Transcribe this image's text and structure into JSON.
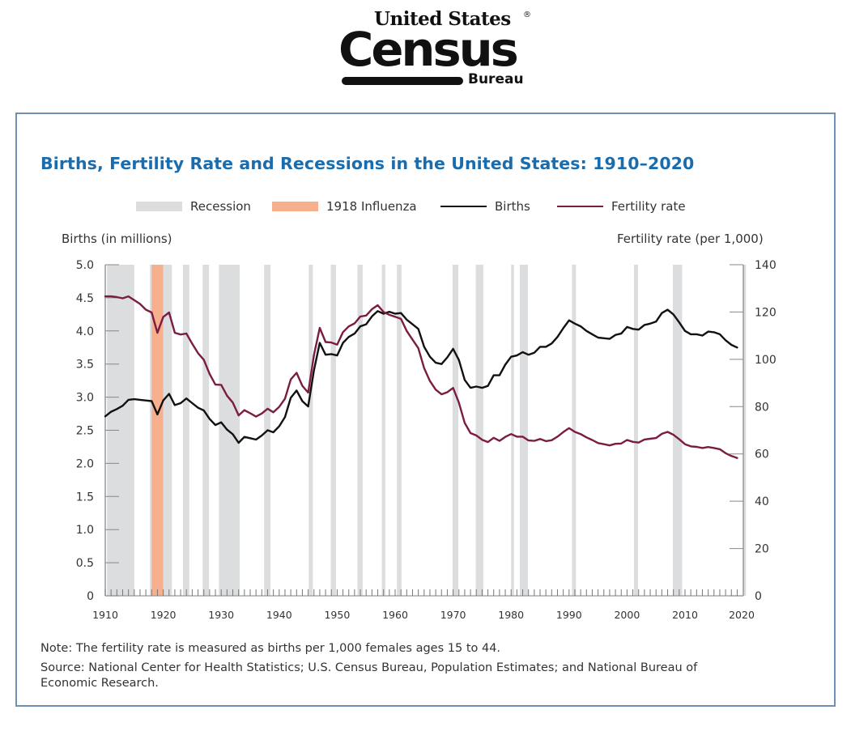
{
  "logo": {
    "line1": "United States",
    "registered": "®",
    "main": "Census",
    "sub": "Bureau"
  },
  "chart_data": {
    "type": "line",
    "title": "Births, Fertility Rate and Recessions in the United States: 1910–2020",
    "legend_placement": "top-center",
    "legend": [
      {
        "label": "Recession",
        "kind": "band",
        "color": "#dcdddf"
      },
      {
        "label": "1918 Influenza",
        "kind": "band",
        "color": "#f6b08e"
      },
      {
        "label": "Births",
        "kind": "line",
        "color": "#111111"
      },
      {
        "label": "Fertility rate",
        "kind": "line",
        "color": "#7b1c43"
      }
    ],
    "ylabel_left": "Births (in millions)",
    "ylabel_right": "Fertility rate (per 1,000)",
    "xlim": [
      1910,
      2020
    ],
    "ylim_left": [
      0,
      5
    ],
    "ylim_right": [
      0,
      140
    ],
    "x_ticks": [
      1910,
      1920,
      1930,
      1940,
      1950,
      1960,
      1970,
      1980,
      1990,
      2000,
      2010,
      2020
    ],
    "y_ticks_left": [
      "0",
      "0.5",
      "1.0",
      "1.5",
      "2.0",
      "2.5",
      "3.0",
      "3.5",
      "4.0",
      "4.5",
      "5.0"
    ],
    "y_ticks_right": [
      "0",
      "20",
      "40",
      "60",
      "80",
      "100",
      "120",
      "140"
    ],
    "grid": false,
    "recessions": [
      [
        1910.3,
        1915.0
      ],
      [
        1917.7,
        1918.0
      ],
      [
        1920.0,
        1921.5
      ],
      [
        1923.4,
        1924.5
      ],
      [
        1926.8,
        1927.9
      ],
      [
        1929.6,
        1933.2
      ],
      [
        1937.4,
        1938.5
      ],
      [
        1945.1,
        1945.8
      ],
      [
        1948.9,
        1949.8
      ],
      [
        1953.5,
        1954.4
      ],
      [
        1957.7,
        1958.3
      ],
      [
        1960.3,
        1961.1
      ],
      [
        1969.9,
        1970.9
      ],
      [
        1973.9,
        1975.2
      ],
      [
        1980.0,
        1980.5
      ],
      [
        1981.5,
        1982.9
      ],
      [
        1990.5,
        1991.2
      ],
      [
        2001.2,
        2001.9
      ],
      [
        2007.9,
        2009.5
      ],
      [
        2020.1,
        2020.4
      ]
    ],
    "influenza": [
      1918.0,
      1920.0
    ],
    "series": [
      {
        "name": "Births",
        "axis": "left",
        "color": "#111111",
        "x": [
          1910,
          1911,
          1912,
          1913,
          1914,
          1915,
          1916,
          1917,
          1918,
          1919,
          1920,
          1921,
          1922,
          1923,
          1924,
          1925,
          1926,
          1927,
          1928,
          1929,
          1930,
          1931,
          1932,
          1933,
          1934,
          1935,
          1936,
          1937,
          1938,
          1939,
          1940,
          1941,
          1942,
          1943,
          1944,
          1945,
          1946,
          1947,
          1948,
          1949,
          1950,
          1951,
          1952,
          1953,
          1954,
          1955,
          1956,
          1957,
          1958,
          1959,
          1960,
          1961,
          1962,
          1963,
          1964,
          1965,
          1966,
          1967,
          1968,
          1969,
          1970,
          1971,
          1972,
          1973,
          1974,
          1975,
          1976,
          1977,
          1978,
          1979,
          1980,
          1981,
          1982,
          1983,
          1984,
          1985,
          1986,
          1987,
          1988,
          1989,
          1990,
          1991,
          1992,
          1993,
          1994,
          1995,
          1996,
          1997,
          1998,
          1999,
          2000,
          2001,
          2002,
          2003,
          2004,
          2005,
          2006,
          2007,
          2008,
          2009,
          2010,
          2011,
          2012,
          2013,
          2014,
          2015,
          2016,
          2017,
          2018,
          2019
        ],
        "values": [
          2.71,
          2.78,
          2.82,
          2.87,
          2.96,
          2.97,
          2.96,
          2.95,
          2.94,
          2.74,
          2.95,
          3.05,
          2.88,
          2.91,
          2.98,
          2.91,
          2.84,
          2.8,
          2.67,
          2.58,
          2.62,
          2.51,
          2.44,
          2.31,
          2.4,
          2.38,
          2.36,
          2.42,
          2.5,
          2.47,
          2.56,
          2.7,
          2.99,
          3.1,
          2.94,
          2.86,
          3.41,
          3.82,
          3.64,
          3.65,
          3.63,
          3.82,
          3.91,
          3.96,
          4.07,
          4.1,
          4.22,
          4.3,
          4.26,
          4.29,
          4.26,
          4.27,
          4.17,
          4.1,
          4.03,
          3.76,
          3.61,
          3.52,
          3.5,
          3.6,
          3.73,
          3.56,
          3.26,
          3.14,
          3.16,
          3.14,
          3.17,
          3.33,
          3.33,
          3.49,
          3.61,
          3.63,
          3.68,
          3.64,
          3.67,
          3.76,
          3.76,
          3.81,
          3.91,
          4.04,
          4.16,
          4.11,
          4.07,
          4.0,
          3.95,
          3.9,
          3.89,
          3.88,
          3.94,
          3.96,
          4.06,
          4.03,
          4.02,
          4.09,
          4.11,
          4.14,
          4.27,
          4.32,
          4.25,
          4.13,
          4.0,
          3.95,
          3.95,
          3.93,
          3.99,
          3.98,
          3.95,
          3.86,
          3.79,
          3.75
        ]
      },
      {
        "name": "Fertility rate",
        "axis": "right",
        "color": "#7b1c43",
        "x": [
          1910,
          1911,
          1912,
          1913,
          1914,
          1915,
          1916,
          1917,
          1918,
          1919,
          1920,
          1921,
          1922,
          1923,
          1924,
          1925,
          1926,
          1927,
          1928,
          1929,
          1930,
          1931,
          1932,
          1933,
          1934,
          1935,
          1936,
          1937,
          1938,
          1939,
          1940,
          1941,
          1942,
          1943,
          1944,
          1945,
          1946,
          1947,
          1948,
          1949,
          1950,
          1951,
          1952,
          1953,
          1954,
          1955,
          1956,
          1957,
          1958,
          1959,
          1960,
          1961,
          1962,
          1963,
          1964,
          1965,
          1966,
          1967,
          1968,
          1969,
          1970,
          1971,
          1972,
          1973,
          1974,
          1975,
          1976,
          1977,
          1978,
          1979,
          1980,
          1981,
          1982,
          1983,
          1984,
          1985,
          1986,
          1987,
          1988,
          1989,
          1990,
          1991,
          1992,
          1993,
          1994,
          1995,
          1996,
          1997,
          1998,
          1999,
          2000,
          2001,
          2002,
          2003,
          2004,
          2005,
          2006,
          2007,
          2008,
          2009,
          2010,
          2011,
          2012,
          2013,
          2014,
          2015,
          2016,
          2017,
          2018,
          2019
        ],
        "values": [
          126.6,
          126.6,
          126.3,
          125.8,
          126.6,
          125.0,
          123.4,
          121.0,
          119.8,
          111.2,
          117.9,
          119.8,
          111.2,
          110.5,
          110.9,
          106.6,
          102.6,
          99.8,
          93.8,
          89.3,
          89.2,
          84.6,
          81.7,
          76.3,
          78.5,
          77.2,
          75.8,
          77.1,
          79.1,
          77.6,
          79.9,
          83.4,
          91.5,
          94.3,
          88.8,
          85.9,
          101.9,
          113.3,
          107.3,
          107.1,
          106.2,
          111.5,
          113.9,
          115.2,
          118.1,
          118.5,
          121.2,
          122.9,
          120.0,
          118.8,
          118.0,
          117.1,
          112.0,
          108.3,
          104.7,
          96.3,
          90.8,
          87.2,
          85.2,
          86.1,
          87.9,
          81.6,
          73.1,
          68.8,
          67.8,
          66.0,
          65.0,
          66.8,
          65.5,
          67.2,
          68.4,
          67.3,
          67.3,
          65.7,
          65.5,
          66.3,
          65.4,
          65.8,
          67.3,
          69.2,
          70.9,
          69.3,
          68.4,
          67.0,
          65.9,
          64.6,
          64.1,
          63.6,
          64.3,
          64.4,
          65.9,
          65.1,
          64.8,
          66.1,
          66.4,
          66.7,
          68.5,
          69.3,
          68.1,
          66.2,
          64.1,
          63.2,
          63.0,
          62.5,
          62.9,
          62.5,
          62.0,
          60.3,
          59.1,
          58.3
        ]
      }
    ]
  },
  "notes": {
    "note": "Note: The fertility rate is measured as births per 1,000 females ages 15 to 44.",
    "source_line1": "Source: National Center for Health Statistics; U.S. Census Bureau, Population Estimates; and National Bureau of",
    "source_line2": "Economic Research."
  }
}
